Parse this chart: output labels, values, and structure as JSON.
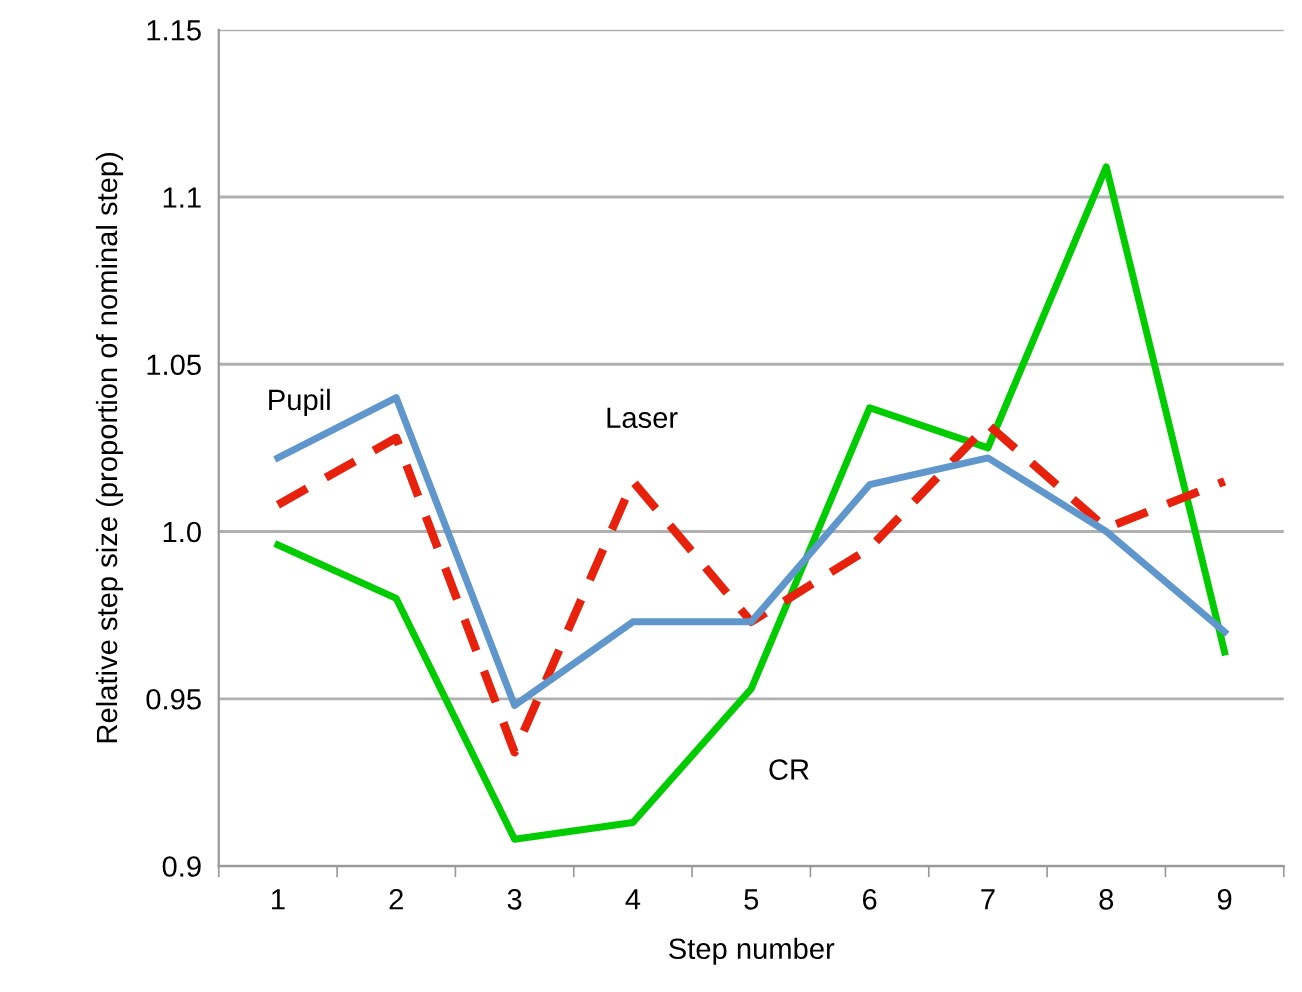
{
  "chart_data": {
    "type": "line",
    "xlabel": "Step number",
    "ylabel": "Relative step size (proportion of nominal step)",
    "categories": [
      "1",
      "2",
      "3",
      "4",
      "5",
      "6",
      "7",
      "8",
      "9"
    ],
    "series": [
      {
        "name": "CR",
        "color": "#00cc00",
        "line_style": "solid",
        "values": [
          0.996,
          0.98,
          0.908,
          0.913,
          0.953,
          1.037,
          1.025,
          1.109,
          0.964
        ]
      },
      {
        "name": "Laser",
        "color": "#e8210c",
        "line_style": "dashed",
        "values": [
          1.008,
          1.028,
          0.934,
          1.015,
          0.973,
          0.995,
          1.032,
          1.001,
          1.015
        ]
      },
      {
        "name": "Pupil",
        "color": "#5f96cc",
        "line_style": "solid",
        "values": [
          1.022,
          1.04,
          0.948,
          0.973,
          0.973,
          1.014,
          1.022,
          1.0,
          0.97
        ]
      }
    ],
    "ylim": [
      0.9,
      1.15
    ],
    "yticks": [
      {
        "value": 0.9,
        "label": "0.9"
      },
      {
        "value": 0.95,
        "label": "0.95"
      },
      {
        "value": 1.0,
        "label": "1.0"
      },
      {
        "value": 1.05,
        "label": "1.05"
      },
      {
        "value": 1.1,
        "label": "1.1"
      },
      {
        "value": 1.15,
        "label": "1.15"
      }
    ],
    "grid": "y",
    "marker": "none",
    "legend": false
  }
}
